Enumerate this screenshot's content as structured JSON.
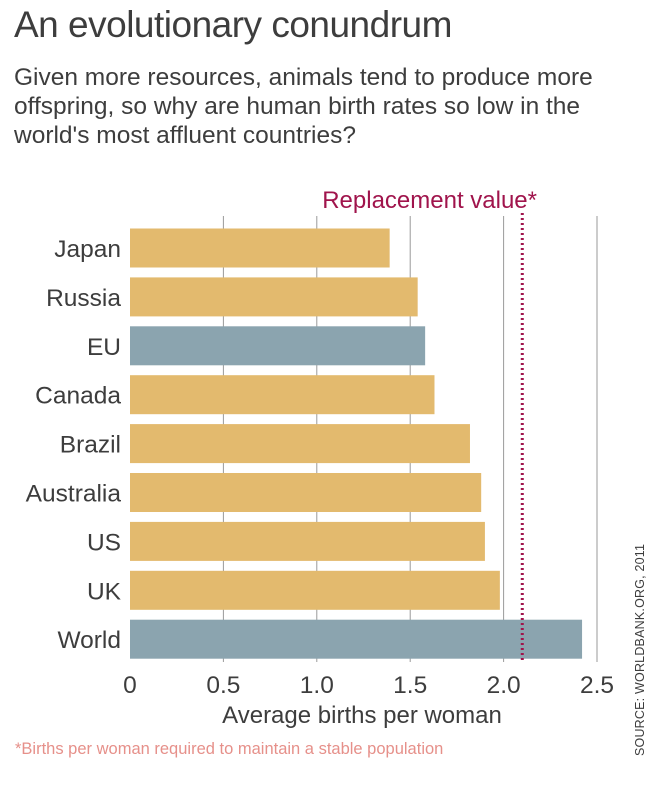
{
  "title": "An evolutionary conundrum",
  "subtitle": "Given more resources, animals tend to produce more offspring, so why are human birth rates so low in the world's most affluent countries?",
  "footnote": "*Births per woman required to maintain a stable population",
  "source": "SOURCE: WORLDBANK.ORG, 2011",
  "colors": {
    "country": "#e3ba6e",
    "aggregate": "#8ba4af",
    "reference": "#a0144c",
    "grid": "#9a9a9a",
    "text": "#3d3d3d"
  },
  "chart_data": {
    "type": "bar",
    "orientation": "horizontal",
    "categories": [
      "Japan",
      "Russia",
      "EU",
      "Canada",
      "Brazil",
      "Australia",
      "US",
      "UK",
      "World"
    ],
    "values": [
      1.39,
      1.54,
      1.58,
      1.63,
      1.82,
      1.88,
      1.9,
      1.98,
      2.42
    ],
    "highlighted": [
      "EU",
      "World"
    ],
    "xlabel": "Average births per woman",
    "xlim": [
      0,
      2.5
    ],
    "xticks": [
      0,
      0.5,
      1.0,
      1.5,
      2.0,
      2.5
    ],
    "xtick_labels": [
      "0",
      "0.5",
      "1.0",
      "1.5",
      "2.0",
      "2.5"
    ],
    "grid": true,
    "reference_line": {
      "value": 2.1,
      "label": "Replacement value*"
    }
  }
}
